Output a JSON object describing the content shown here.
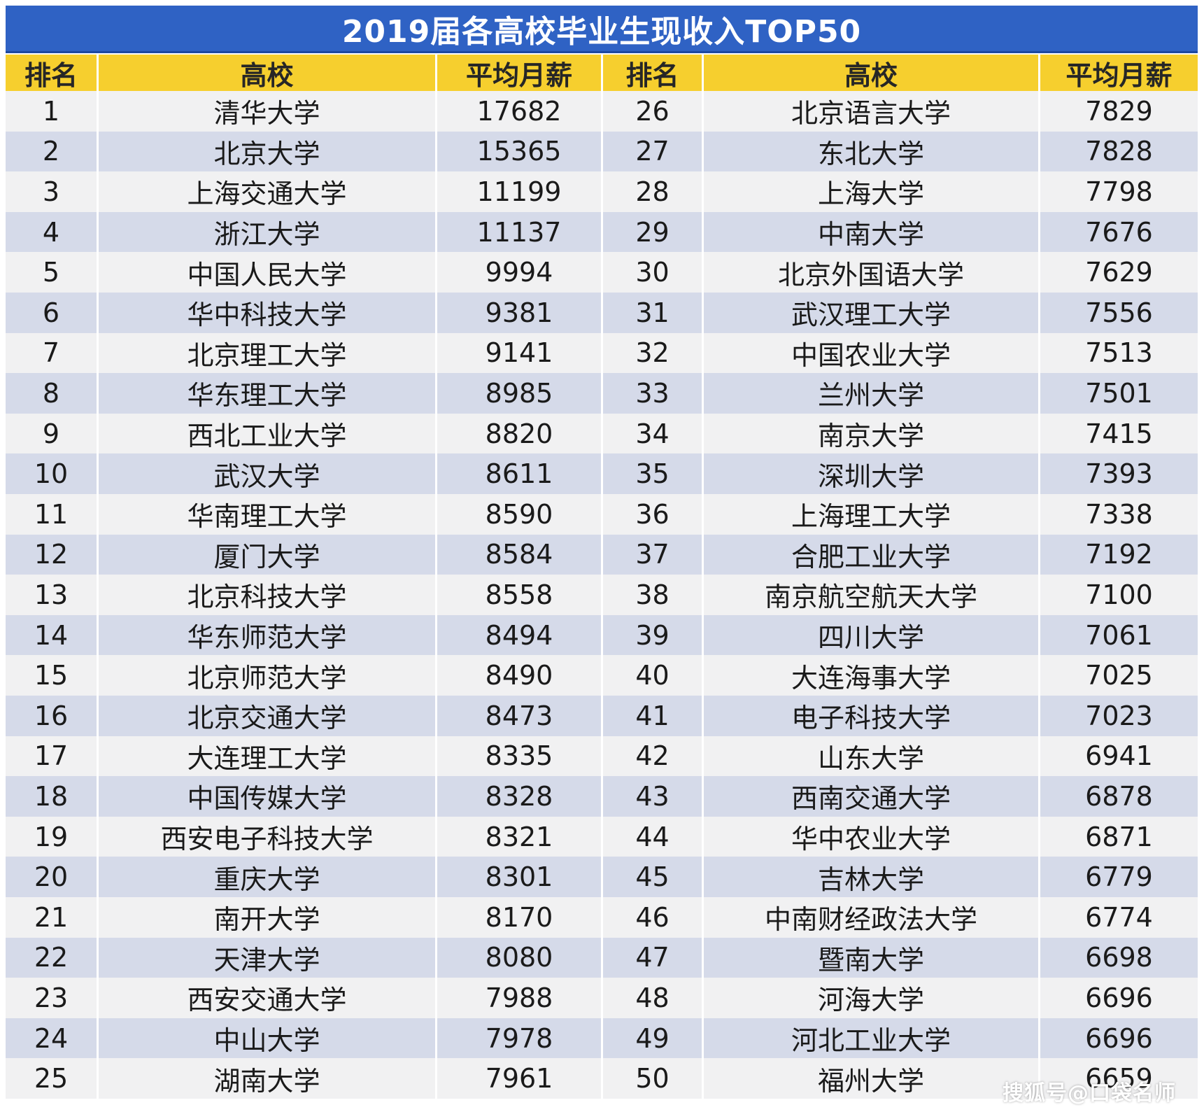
{
  "title": "2019届各高校毕业生现收入TOP50",
  "colors": {
    "title_bg": "#2f62c4",
    "header_bg": "#f6cf2e",
    "row_light": "#f1f1f2",
    "row_blue": "#d5dae9"
  },
  "watermark": "搜狐号@口袋名师",
  "chart_data": {
    "type": "table",
    "title": "2019届各高校毕业生现收入TOP50",
    "columns": [
      "排名",
      "高校",
      "平均月薪",
      "排名",
      "高校",
      "平均月薪"
    ],
    "rows": [
      [
        1,
        "清华大学",
        17682,
        26,
        "北京语言大学",
        7829
      ],
      [
        2,
        "北京大学",
        15365,
        27,
        "东北大学",
        7828
      ],
      [
        3,
        "上海交通大学",
        11199,
        28,
        "上海大学",
        7798
      ],
      [
        4,
        "浙江大学",
        11137,
        29,
        "中南大学",
        7676
      ],
      [
        5,
        "中国人民大学",
        9994,
        30,
        "北京外国语大学",
        7629
      ],
      [
        6,
        "华中科技大学",
        9381,
        31,
        "武汉理工大学",
        7556
      ],
      [
        7,
        "北京理工大学",
        9141,
        32,
        "中国农业大学",
        7513
      ],
      [
        8,
        "华东理工大学",
        8985,
        33,
        "兰州大学",
        7501
      ],
      [
        9,
        "西北工业大学",
        8820,
        34,
        "南京大学",
        7415
      ],
      [
        10,
        "武汉大学",
        8611,
        35,
        "深圳大学",
        7393
      ],
      [
        11,
        "华南理工大学",
        8590,
        36,
        "上海理工大学",
        7338
      ],
      [
        12,
        "厦门大学",
        8584,
        37,
        "合肥工业大学",
        7192
      ],
      [
        13,
        "北京科技大学",
        8558,
        38,
        "南京航空航天大学",
        7100
      ],
      [
        14,
        "华东师范大学",
        8494,
        39,
        "四川大学",
        7061
      ],
      [
        15,
        "北京师范大学",
        8490,
        40,
        "大连海事大学",
        7025
      ],
      [
        16,
        "北京交通大学",
        8473,
        41,
        "电子科技大学",
        7023
      ],
      [
        17,
        "大连理工大学",
        8335,
        42,
        "山东大学",
        6941
      ],
      [
        18,
        "中国传媒大学",
        8328,
        43,
        "西南交通大学",
        6878
      ],
      [
        19,
        "西安电子科技大学",
        8321,
        44,
        "华中农业大学",
        6871
      ],
      [
        20,
        "重庆大学",
        8301,
        45,
        "吉林大学",
        6779
      ],
      [
        21,
        "南开大学",
        8170,
        46,
        "中南财经政法大学",
        6774
      ],
      [
        22,
        "天津大学",
        8080,
        47,
        "暨南大学",
        6698
      ],
      [
        23,
        "西安交通大学",
        7988,
        48,
        "河海大学",
        6696
      ],
      [
        24,
        "中山大学",
        7978,
        49,
        "河北工业大学",
        6696
      ],
      [
        25,
        "湖南大学",
        7961,
        50,
        "福州大学",
        6659
      ]
    ]
  }
}
